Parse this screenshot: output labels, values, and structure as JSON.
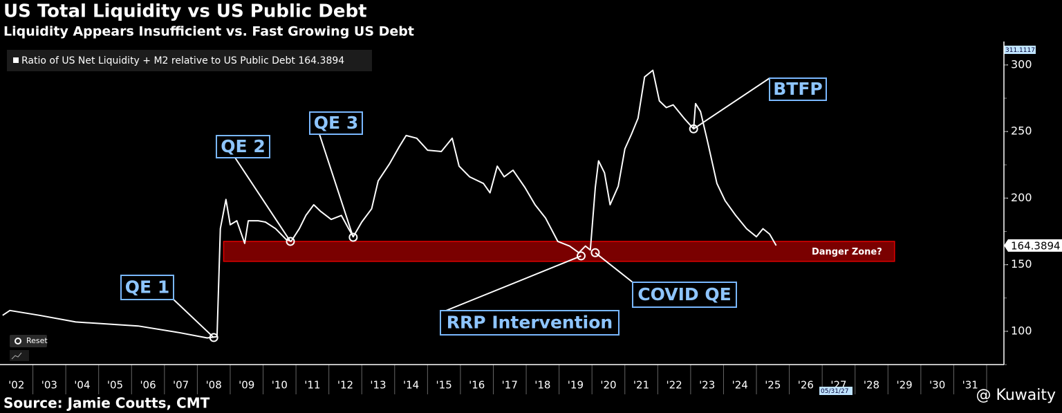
{
  "chart_data": {
    "type": "line",
    "title": "US Total Liquidity vs US Public Debt",
    "subtitle": "Liquidity Appears Insufficient vs. Fast Growing US Debt",
    "series": [
      {
        "name": "Ratio of US Net Liquidity + M2 relative to US Public Debt",
        "last_value": 164.3894,
        "color": "#ffffff",
        "x": [
          2002.08,
          2002.3,
          2003.2,
          2004.3,
          2006.2,
          2007.45,
          2008.3,
          2008.6,
          2008.7,
          2008.87,
          2009.0,
          2009.2,
          2009.44,
          2009.55,
          2009.85,
          2010.07,
          2010.38,
          2010.7,
          2010.85,
          2011.1,
          2011.3,
          2011.54,
          2011.75,
          2012.07,
          2012.38,
          2012.6,
          2012.74,
          2013.0,
          2013.3,
          2013.5,
          2013.85,
          2014.15,
          2014.35,
          2014.67,
          2015.0,
          2015.42,
          2015.75,
          2015.96,
          2016.28,
          2016.7,
          2016.9,
          2017.12,
          2017.33,
          2017.6,
          2017.96,
          2018.27,
          2018.59,
          2018.96,
          2019.32,
          2019.6,
          2019.8,
          2019.95,
          2020.1,
          2020.2,
          2020.38,
          2020.55,
          2020.8,
          2021.0,
          2021.2,
          2021.4,
          2021.6,
          2021.85,
          2022.05,
          2022.26,
          2022.47,
          2022.8,
          2023.09,
          2023.15,
          2023.3,
          2023.5,
          2023.8,
          2024.05,
          2024.37,
          2024.7,
          2025.0,
          2025.2,
          2025.4,
          2025.6
        ],
        "values": [
          112,
          115.6,
          112,
          107,
          104,
          99,
          95,
          96,
          177,
          199,
          180,
          183,
          166,
          183,
          183,
          182,
          177,
          169,
          167.5,
          177,
          187,
          195,
          190,
          184,
          187,
          177,
          171,
          182,
          192,
          213,
          226,
          239,
          247,
          245,
          236,
          235,
          245,
          224,
          216,
          211,
          204,
          224,
          216,
          221,
          208,
          195,
          185,
          167.5,
          164,
          159,
          164,
          161,
          208,
          228,
          219,
          195,
          209,
          237,
          248,
          260,
          291,
          296,
          273,
          268,
          270,
          260,
          252,
          271,
          265,
          244,
          211,
          198,
          187,
          177,
          171,
          177,
          173,
          164.3894
        ]
      }
    ],
    "xlim": [
      2002,
      2032.5
    ],
    "ylim": [
      75,
      315
    ],
    "yticks": [
      100,
      150,
      200,
      250,
      300
    ],
    "xticks": [
      {
        "value": 2002.5,
        "label": "'02"
      },
      {
        "value": 2003.5,
        "label": "'03"
      },
      {
        "value": 2004.5,
        "label": "'04"
      },
      {
        "value": 2005.5,
        "label": "'05"
      },
      {
        "value": 2006.5,
        "label": "'06"
      },
      {
        "value": 2007.5,
        "label": "'07"
      },
      {
        "value": 2008.5,
        "label": "'08"
      },
      {
        "value": 2009.5,
        "label": "'09"
      },
      {
        "value": 2010.5,
        "label": "'10"
      },
      {
        "value": 2011.5,
        "label": "'11"
      },
      {
        "value": 2012.5,
        "label": "'12"
      },
      {
        "value": 2013.5,
        "label": "'13"
      },
      {
        "value": 2014.5,
        "label": "'14"
      },
      {
        "value": 2015.5,
        "label": "'15"
      },
      {
        "value": 2016.5,
        "label": "'16"
      },
      {
        "value": 2017.5,
        "label": "'17"
      },
      {
        "value": 2018.5,
        "label": "'18"
      },
      {
        "value": 2019.5,
        "label": "'19"
      },
      {
        "value": 2020.5,
        "label": "'20"
      },
      {
        "value": 2021.5,
        "label": "'21"
      },
      {
        "value": 2022.5,
        "label": "'22"
      },
      {
        "value": 2023.5,
        "label": "'23"
      },
      {
        "value": 2024.5,
        "label": "'24"
      },
      {
        "value": 2025.5,
        "label": "'25"
      },
      {
        "value": 2026.5,
        "label": "'26"
      },
      {
        "value": 2027.5,
        "label": "'27"
      },
      {
        "value": 2028.5,
        "label": "'28"
      },
      {
        "value": 2029.5,
        "label": "'29"
      },
      {
        "value": 2030.5,
        "label": "'30"
      },
      {
        "value": 2031.5,
        "label": "'31"
      }
    ],
    "axis_max_label": "311.1117",
    "cursor_date_label": "05/31/27",
    "danger_zone": {
      "label": "Danger Zone?",
      "x": [
        2008.8,
        2029.2
      ],
      "y": [
        152.5,
        167.5
      ],
      "color": "#7a0000"
    },
    "annotations": [
      {
        "text": "QE 1",
        "x": 2008.5,
        "value": 95.3
      },
      {
        "text": "QE 2",
        "x": 2010.83,
        "value": 167.5
      },
      {
        "text": "QE 3",
        "x": 2012.74,
        "value": 170.6
      },
      {
        "text": "BTFP",
        "x": 2023.09,
        "value": 252
      },
      {
        "text": "RRP Intervention",
        "x": 2019.67,
        "value": 156.6
      },
      {
        "text": "COVID QE",
        "x": 2020.1,
        "value": 159
      }
    ],
    "source": "Source: Jamie Coutts, CMT",
    "watermark": "@ Kuwaity"
  },
  "ui": {
    "reset": "Reset"
  }
}
